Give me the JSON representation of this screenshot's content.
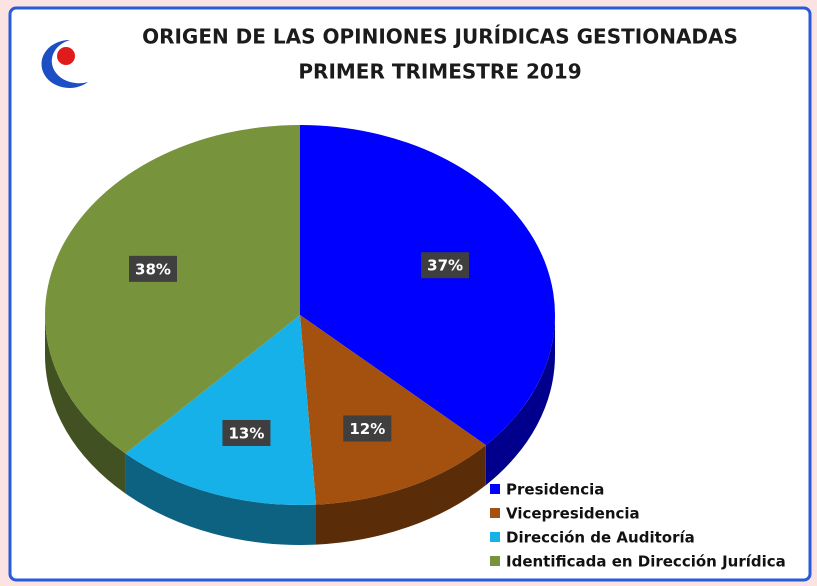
{
  "chart_data": {
    "type": "pie",
    "title": "ORIGEN DE LAS OPINIONES JURÍDICAS GESTIONADAS",
    "subtitle": "PRIMER TRIMESTRE 2019",
    "categories": [
      "Presidencia",
      "Vicepresidencia",
      "Dirección de Auditoría",
      "Identificada en Dirección Jurídica"
    ],
    "values": [
      37,
      12,
      13,
      38
    ],
    "value_labels": [
      "37%",
      "12%",
      "13%",
      "38%"
    ],
    "colors": [
      "#0000ff",
      "#a4500e",
      "#17b1ea",
      "#77933c"
    ],
    "legend": "bottom-right"
  }
}
